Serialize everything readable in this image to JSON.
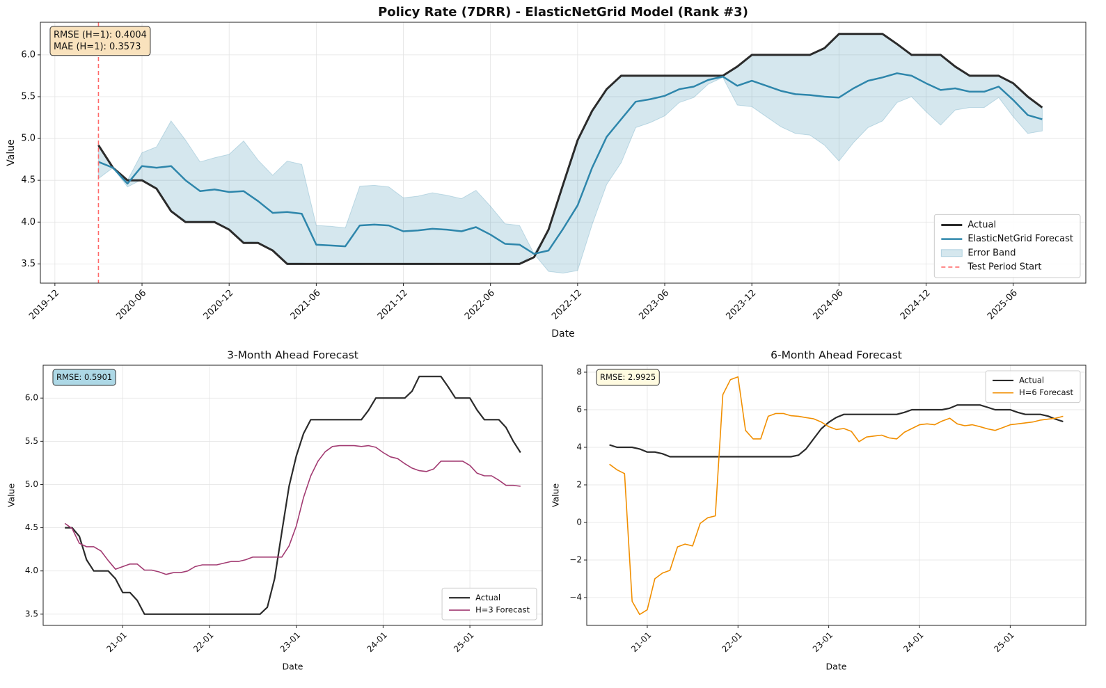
{
  "chart_data": [
    {
      "type": "line",
      "title": "Policy Rate (7DRR) - ElasticNetGrid Model (Rank #3)",
      "xlabel": "Date",
      "ylabel": "Value",
      "x": [
        "2020-03",
        "2020-04",
        "2020-05",
        "2020-06",
        "2020-07",
        "2020-08",
        "2020-09",
        "2020-10",
        "2020-11",
        "2020-12",
        "2021-01",
        "2021-02",
        "2021-03",
        "2021-04",
        "2021-05",
        "2021-06",
        "2021-07",
        "2021-08",
        "2021-09",
        "2021-10",
        "2021-11",
        "2021-12",
        "2022-01",
        "2022-02",
        "2022-03",
        "2022-04",
        "2022-05",
        "2022-06",
        "2022-07",
        "2022-08",
        "2022-09",
        "2022-10",
        "2022-11",
        "2022-12",
        "2023-01",
        "2023-02",
        "2023-03",
        "2023-04",
        "2023-05",
        "2023-06",
        "2023-07",
        "2023-08",
        "2023-09",
        "2023-10",
        "2023-11",
        "2023-12",
        "2024-01",
        "2024-02",
        "2024-03",
        "2024-04",
        "2024-05",
        "2024-06",
        "2024-07",
        "2024-08",
        "2024-09",
        "2024-10",
        "2024-11",
        "2024-12",
        "2025-01",
        "2025-02",
        "2025-03",
        "2025-04",
        "2025-05",
        "2025-06",
        "2025-07",
        "2025-08"
      ],
      "series": [
        {
          "name": "Actual",
          "color": "#2b2b2b",
          "values": [
            4.92,
            4.65,
            4.5,
            4.5,
            4.4,
            4.13,
            4.0,
            4.0,
            4.0,
            3.91,
            3.75,
            3.75,
            3.66,
            3.5,
            3.5,
            3.5,
            3.5,
            3.5,
            3.5,
            3.5,
            3.5,
            3.5,
            3.5,
            3.5,
            3.5,
            3.5,
            3.5,
            3.5,
            3.5,
            3.5,
            3.58,
            3.91,
            4.45,
            4.98,
            5.33,
            5.59,
            5.75,
            5.75,
            5.75,
            5.75,
            5.75,
            5.75,
            5.75,
            5.75,
            5.86,
            6.0,
            6.0,
            6.0,
            6.0,
            6.0,
            6.08,
            6.25,
            6.25,
            6.25,
            6.25,
            6.13,
            6.0,
            6.0,
            6.0,
            5.86,
            5.75,
            5.75,
            5.75,
            5.66,
            5.5,
            5.37
          ]
        },
        {
          "name": "ElasticNetGrid Forecast",
          "color": "#2e86ab",
          "values": [
            4.72,
            4.65,
            4.46,
            4.67,
            4.65,
            4.67,
            4.5,
            4.37,
            4.39,
            4.36,
            4.37,
            4.25,
            4.11,
            4.12,
            4.1,
            3.73,
            3.72,
            3.71,
            3.96,
            3.97,
            3.96,
            3.89,
            3.9,
            3.92,
            3.91,
            3.89,
            3.94,
            3.85,
            3.74,
            3.73,
            3.62,
            3.66,
            3.92,
            4.2,
            4.65,
            5.02,
            5.23,
            5.44,
            5.47,
            5.51,
            5.59,
            5.62,
            5.7,
            5.74,
            5.63,
            5.69,
            5.63,
            5.57,
            5.53,
            5.52,
            5.5,
            5.49,
            5.6,
            5.69,
            5.73,
            5.78,
            5.75,
            5.66,
            5.58,
            5.6,
            5.56,
            5.56,
            5.62,
            5.46,
            5.28,
            5.23
          ]
        }
      ],
      "band": {
        "name": "Error Band",
        "color": "#2e86ab",
        "upper": [
          4.92,
          4.65,
          4.5,
          4.83,
          4.9,
          5.21,
          4.98,
          4.72,
          4.77,
          4.81,
          4.97,
          4.74,
          4.56,
          4.73,
          4.69,
          3.96,
          3.95,
          3.93,
          4.43,
          4.44,
          4.42,
          4.29,
          4.31,
          4.35,
          4.32,
          4.28,
          4.38,
          4.19,
          3.98,
          3.96,
          3.62,
          3.91,
          4.45,
          4.98,
          5.33,
          5.59,
          5.75,
          5.75,
          5.75,
          5.75,
          5.75,
          5.75,
          5.75,
          5.75,
          5.86,
          6.0,
          6.0,
          6.0,
          6.0,
          6.0,
          6.08,
          6.25,
          6.25,
          6.25,
          6.25,
          6.13,
          6.0,
          6.0,
          6.0,
          5.86,
          5.75,
          5.75,
          5.75,
          5.66,
          5.5,
          5.37
        ],
        "lower": [
          4.52,
          4.65,
          4.42,
          4.51,
          4.4,
          4.13,
          4.02,
          4.02,
          4.01,
          3.91,
          3.77,
          3.76,
          3.66,
          3.51,
          3.51,
          3.5,
          3.49,
          3.49,
          3.49,
          3.5,
          3.5,
          3.49,
          3.49,
          3.49,
          3.5,
          3.5,
          3.5,
          3.51,
          3.5,
          3.5,
          3.62,
          3.41,
          3.39,
          3.42,
          3.97,
          4.45,
          4.71,
          5.13,
          5.19,
          5.27,
          5.43,
          5.49,
          5.65,
          5.73,
          5.4,
          5.38,
          5.26,
          5.14,
          5.06,
          5.04,
          4.92,
          4.73,
          4.95,
          5.13,
          5.21,
          5.43,
          5.5,
          5.32,
          5.16,
          5.34,
          5.37,
          5.37,
          5.49,
          5.26,
          5.06,
          5.09
        ]
      },
      "vline": {
        "name": "Test Period Start",
        "x": "2020-03",
        "color": "#ff6b6b"
      },
      "annotation": {
        "text": [
          "RMSE (H=1): 0.4004",
          "MAE (H=1): 0.3573"
        ],
        "color": "#f9e2bd"
      },
      "xlim": [
        "2019-11",
        "2025-11"
      ],
      "xticks": [
        "2019-12",
        "2020-06",
        "2020-12",
        "2021-06",
        "2021-12",
        "2022-06",
        "2022-12",
        "2023-06",
        "2023-12",
        "2024-06",
        "2024-12",
        "2025-06"
      ],
      "ylim": [
        3.27,
        6.39
      ],
      "yticks": [
        3.5,
        {
          "value": 4,
          "label": "4.0"
        },
        4.5,
        {
          "value": 5,
          "label": "5.0"
        },
        5.5,
        {
          "value": 6,
          "label": "6.0"
        }
      ],
      "grid": true,
      "legend": "lower right"
    },
    {
      "type": "line",
      "title": "3-Month Ahead Forecast",
      "xlabel": "Date",
      "ylabel": "Value",
      "x": [
        "20-05",
        "20-06",
        "20-07",
        "20-08",
        "20-09",
        "20-10",
        "20-11",
        "20-12",
        "21-01",
        "21-02",
        "21-03",
        "21-04",
        "21-05",
        "21-06",
        "21-07",
        "21-08",
        "21-09",
        "21-10",
        "21-11",
        "21-12",
        "22-01",
        "22-02",
        "22-03",
        "22-04",
        "22-05",
        "22-06",
        "22-07",
        "22-08",
        "22-09",
        "22-10",
        "22-11",
        "22-12",
        "23-01",
        "23-02",
        "23-03",
        "23-04",
        "23-05",
        "23-06",
        "23-07",
        "23-08",
        "23-09",
        "23-10",
        "23-11",
        "23-12",
        "24-01",
        "24-02",
        "24-03",
        "24-04",
        "24-05",
        "24-06",
        "24-07",
        "24-08",
        "24-09",
        "24-10",
        "24-11",
        "24-12",
        "25-01",
        "25-02",
        "25-03",
        "25-04",
        "25-05",
        "25-06",
        "25-07",
        "25-08"
      ],
      "series": [
        {
          "name": "Actual",
          "color": "#2b2b2b",
          "values": [
            4.5,
            4.5,
            4.4,
            4.13,
            4.0,
            4.0,
            4.0,
            3.91,
            3.75,
            3.75,
            3.66,
            3.5,
            3.5,
            3.5,
            3.5,
            3.5,
            3.5,
            3.5,
            3.5,
            3.5,
            3.5,
            3.5,
            3.5,
            3.5,
            3.5,
            3.5,
            3.5,
            3.5,
            3.58,
            3.91,
            4.45,
            4.98,
            5.33,
            5.59,
            5.75,
            5.75,
            5.75,
            5.75,
            5.75,
            5.75,
            5.75,
            5.75,
            5.86,
            6.0,
            6.0,
            6.0,
            6.0,
            6.0,
            6.08,
            6.25,
            6.25,
            6.25,
            6.25,
            6.13,
            6.0,
            6.0,
            6.0,
            5.86,
            5.75,
            5.75,
            5.75,
            5.66,
            5.5,
            5.37
          ]
        },
        {
          "name": "H=3 Forecast",
          "color": "#a23b72",
          "values": [
            4.55,
            4.49,
            4.32,
            4.28,
            4.28,
            4.23,
            4.12,
            4.02,
            4.05,
            4.08,
            4.08,
            4.01,
            4.01,
            3.99,
            3.96,
            3.98,
            3.98,
            4.0,
            4.05,
            4.07,
            4.07,
            4.07,
            4.09,
            4.11,
            4.11,
            4.13,
            4.16,
            4.16,
            4.16,
            4.16,
            4.16,
            4.29,
            4.52,
            4.85,
            5.1,
            5.27,
            5.38,
            5.44,
            5.45,
            5.45,
            5.45,
            5.44,
            5.45,
            5.43,
            5.37,
            5.32,
            5.3,
            5.24,
            5.19,
            5.16,
            5.15,
            5.18,
            5.27,
            5.27,
            5.27,
            5.27,
            5.22,
            5.13,
            5.1,
            5.1,
            5.05,
            4.99,
            4.99,
            4.98
          ]
        }
      ],
      "annotation": {
        "text": [
          "RMSE: 0.5901"
        ],
        "color": "#add8e6"
      },
      "xlim": [
        "20-02",
        "25-11"
      ],
      "xticks": [
        "21-01",
        "22-01",
        "23-01",
        "24-01",
        "25-01"
      ],
      "ylim": [
        3.37,
        6.38
      ],
      "yticks": [
        3.5,
        {
          "value": 4,
          "label": "4.0"
        },
        4.5,
        {
          "value": 5,
          "label": "5.0"
        },
        5.5,
        {
          "value": 6,
          "label": "6.0"
        }
      ],
      "grid": true,
      "legend": "lower right"
    },
    {
      "type": "line",
      "title": "6-Month Ahead Forecast",
      "xlabel": "Date",
      "ylabel": "Value",
      "x": [
        "20-08",
        "20-09",
        "20-10",
        "20-11",
        "20-12",
        "21-01",
        "21-02",
        "21-03",
        "21-04",
        "21-05",
        "21-06",
        "21-07",
        "21-08",
        "21-09",
        "21-10",
        "21-11",
        "21-12",
        "22-01",
        "22-02",
        "22-03",
        "22-04",
        "22-05",
        "22-06",
        "22-07",
        "22-08",
        "22-09",
        "22-10",
        "22-11",
        "22-12",
        "23-01",
        "23-02",
        "23-03",
        "23-04",
        "23-05",
        "23-06",
        "23-07",
        "23-08",
        "23-09",
        "23-10",
        "23-11",
        "23-12",
        "24-01",
        "24-02",
        "24-03",
        "24-04",
        "24-05",
        "24-06",
        "24-07",
        "24-08",
        "24-09",
        "24-10",
        "24-11",
        "24-12",
        "25-01",
        "25-02",
        "25-03",
        "25-04",
        "25-05",
        "25-06",
        "25-07",
        "25-08"
      ],
      "series": [
        {
          "name": "Actual",
          "color": "#2b2b2b",
          "values": [
            4.13,
            4.0,
            4.0,
            4.0,
            3.91,
            3.75,
            3.75,
            3.66,
            3.5,
            3.5,
            3.5,
            3.5,
            3.5,
            3.5,
            3.5,
            3.5,
            3.5,
            3.5,
            3.5,
            3.5,
            3.5,
            3.5,
            3.5,
            3.5,
            3.5,
            3.58,
            3.91,
            4.45,
            4.98,
            5.33,
            5.59,
            5.75,
            5.75,
            5.75,
            5.75,
            5.75,
            5.75,
            5.75,
            5.75,
            5.86,
            6.0,
            6.0,
            6.0,
            6.0,
            6.0,
            6.08,
            6.25,
            6.25,
            6.25,
            6.25,
            6.13,
            6.0,
            6.0,
            6.0,
            5.86,
            5.75,
            5.75,
            5.75,
            5.66,
            5.5,
            5.37
          ]
        },
        {
          "name": "H=6 Forecast",
          "color": "#f18f01",
          "values": [
            3.1,
            2.8,
            2.6,
            -4.2,
            -4.9,
            -4.65,
            -3.0,
            -2.7,
            -2.55,
            -1.3,
            -1.15,
            -1.25,
            -0.05,
            0.25,
            0.35,
            6.8,
            7.6,
            7.75,
            4.9,
            4.45,
            4.45,
            5.65,
            5.8,
            5.8,
            5.68,
            5.65,
            5.58,
            5.52,
            5.35,
            5.1,
            4.95,
            5.0,
            4.85,
            4.3,
            4.55,
            4.6,
            4.65,
            4.5,
            4.45,
            4.8,
            5.0,
            5.2,
            5.25,
            5.2,
            5.4,
            5.55,
            5.25,
            5.15,
            5.2,
            5.1,
            4.98,
            4.9,
            5.05,
            5.2,
            5.25,
            5.3,
            5.35,
            5.45,
            5.5,
            5.55,
            5.65
          ]
        }
      ],
      "annotation": {
        "text": [
          "RMSE: 2.9925"
        ],
        "color": "#fffbe0"
      },
      "xlim": [
        "20-05",
        "25-11"
      ],
      "xticks": [
        "21-01",
        "22-01",
        "23-01",
        "24-01",
        "25-01"
      ],
      "ylim": [
        -5.48,
        8.37
      ],
      "yticks": [
        {
          "value": -4,
          "label": "−4"
        },
        {
          "value": -2,
          "label": "−2"
        },
        0,
        2,
        4,
        6,
        8
      ],
      "grid": true,
      "legend": "upper right"
    }
  ]
}
